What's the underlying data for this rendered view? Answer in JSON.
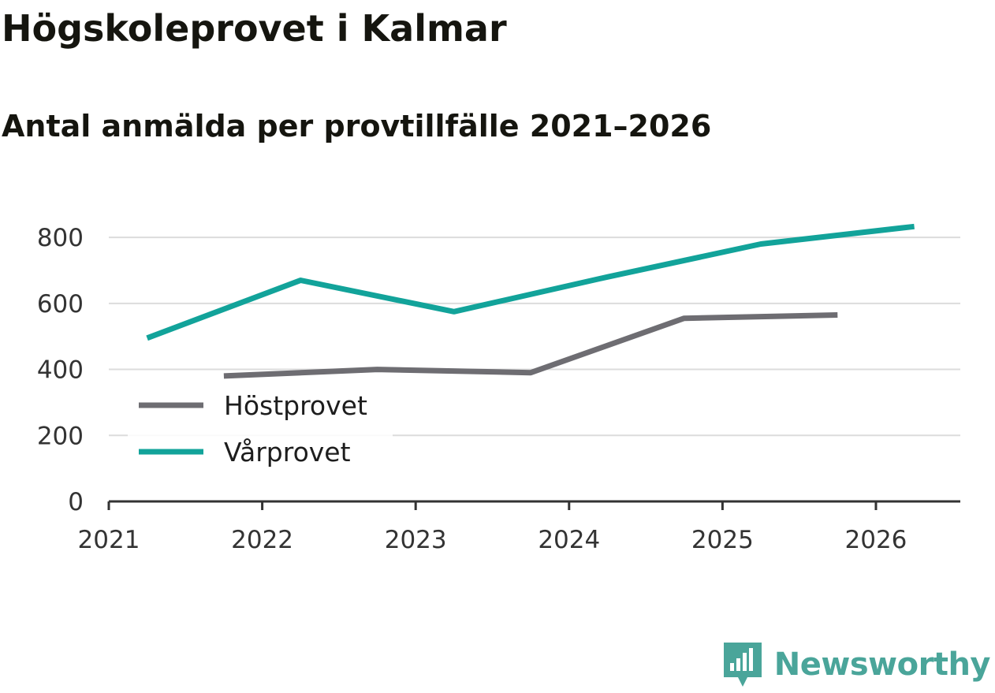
{
  "chart_data": {
    "type": "line",
    "title": "Högskoleprovet i Kalmar",
    "subtitle": "Antal anmälda per provtillfälle 2021–2026",
    "xlabel": "",
    "ylabel": "",
    "x_ticks": [
      "2021",
      "2022",
      "2023",
      "2024",
      "2025",
      "2026"
    ],
    "y_ticks": [
      "0",
      "200",
      "400",
      "600",
      "800"
    ],
    "xlim": [
      2021,
      2026.55
    ],
    "ylim": [
      0,
      860
    ],
    "grid": true,
    "legend_position": "bottom-left",
    "series": [
      {
        "name": "Höstprovet",
        "color": "#6e6d72",
        "x": [
          2021.75,
          2022.75,
          2023.75,
          2024.75,
          2025.75
        ],
        "values": [
          380,
          400,
          390,
          555,
          565
        ]
      },
      {
        "name": "Vårprovet",
        "color": "#12a39a",
        "x": [
          2021.25,
          2022.25,
          2023.25,
          2024.25,
          2025.25,
          2026.25
        ],
        "values": [
          495,
          670,
          575,
          680,
          780,
          833
        ]
      }
    ]
  },
  "brand": {
    "name": "Newsworthy",
    "icon": "newsworthy-logo-icon",
    "color": "#4aa59a"
  }
}
